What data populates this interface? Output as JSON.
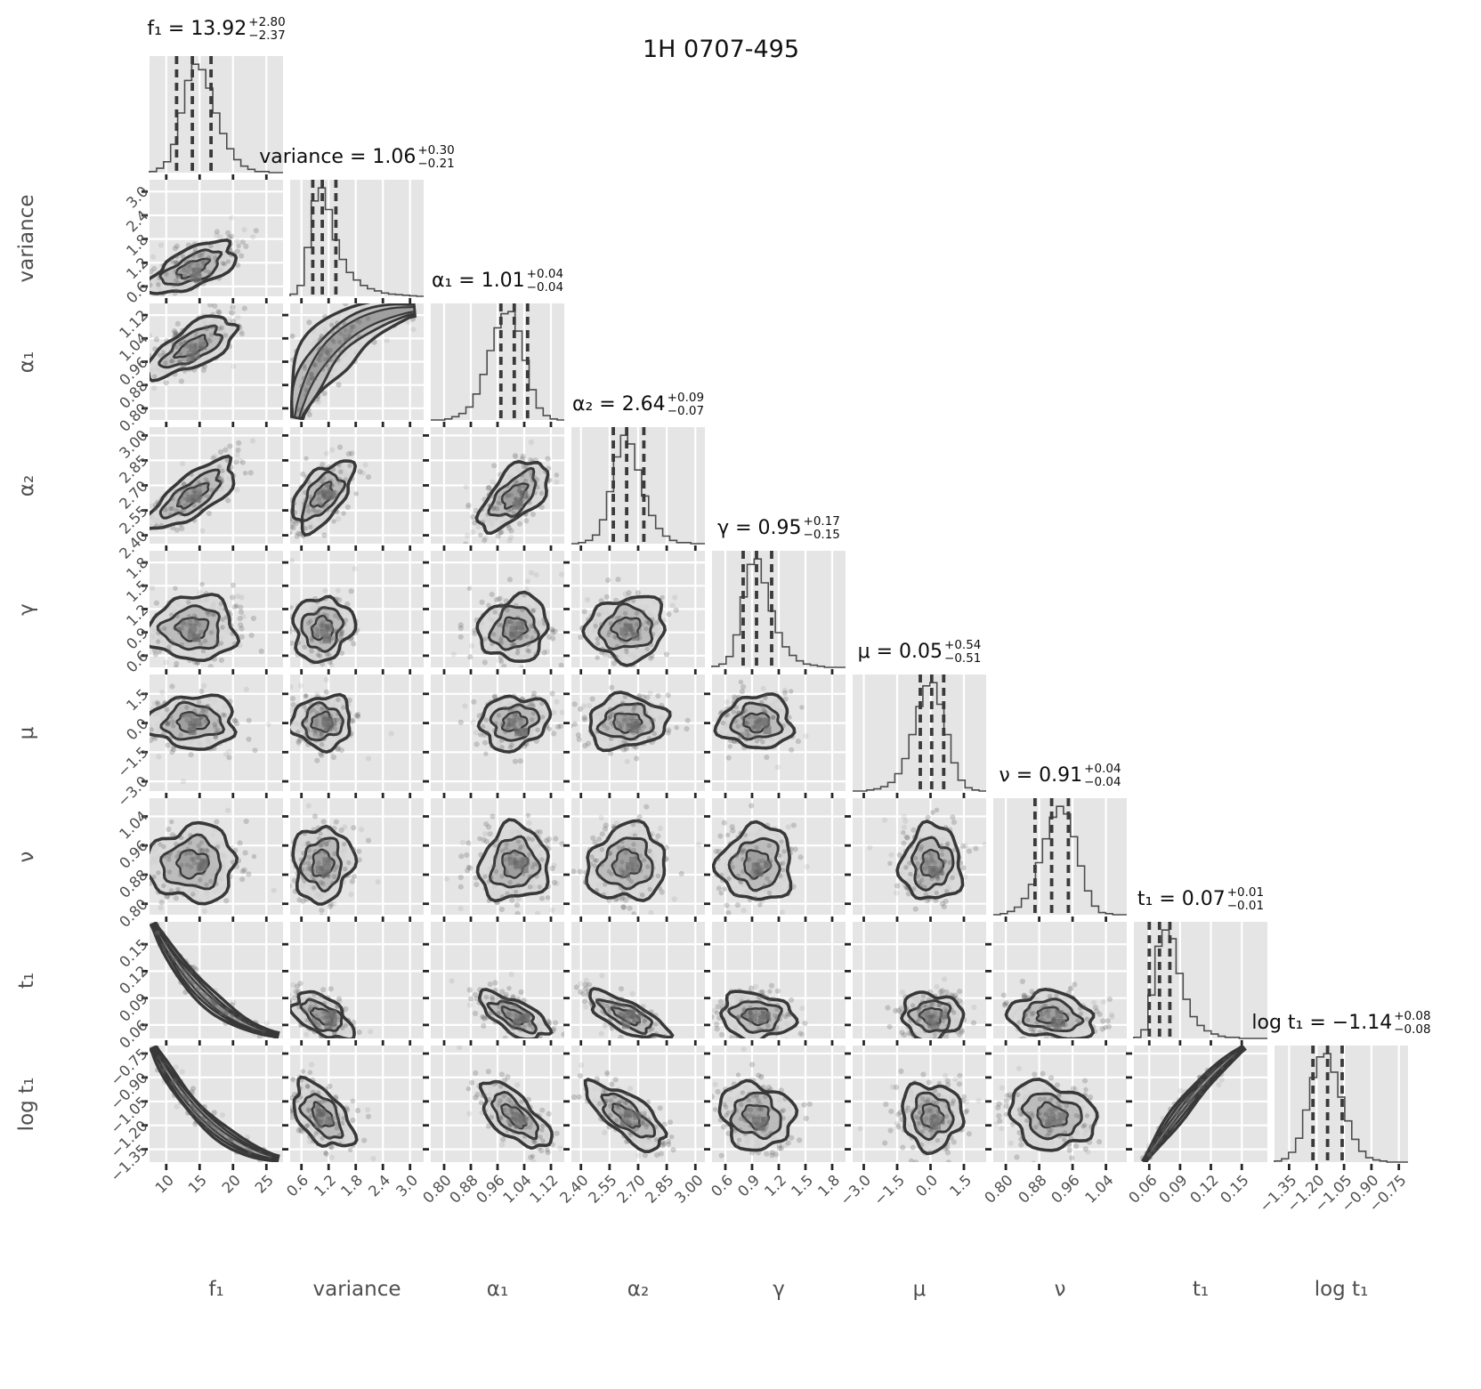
{
  "title": "1H 0707-495",
  "colors": {
    "panel_bg": "#e5e5e5",
    "grid": "#ffffff",
    "hist_line": "#4d4d4d",
    "quantile_line": "#3a3a3a",
    "scatter_point": "#5f5f5f",
    "contour_line": "#383838",
    "contour_fills": [
      "#d8d8d8",
      "#b7b7b7",
      "#979797"
    ],
    "core_patch": "#757575",
    "title_text": "#0d0d0d",
    "label_text": "#4f4f4f",
    "tick_mark": "#262626"
  },
  "chart_data": {
    "type": "corner_plot",
    "title": "1H 0707-495",
    "parameters": [
      {
        "id": "f1",
        "label": "f₁",
        "value": 13.92,
        "plus": 2.8,
        "minus": 2.37,
        "estimate": {
          "prefix": "f₁ = ",
          "value": "13.92",
          "plus": "+2.80",
          "minus": "−2.37"
        },
        "range": [
          7.5,
          27.5
        ],
        "ticks": [
          10,
          15,
          20,
          25
        ],
        "tick_labels": [
          "10",
          "15",
          "20",
          "25"
        ],
        "hist": [
          0.01,
          0.04,
          0.1,
          0.26,
          0.55,
          0.85,
          1.0,
          0.95,
          0.78,
          0.55,
          0.36,
          0.22,
          0.12,
          0.06,
          0.03,
          0.01,
          0.01,
          0,
          0
        ]
      },
      {
        "id": "variance",
        "label": "variance",
        "value": 1.06,
        "plus": 0.3,
        "minus": 0.21,
        "estimate": {
          "prefix": "variance = ",
          "value": "1.06",
          "plus": "+0.30",
          "minus": "−0.21"
        },
        "range": [
          0.35,
          3.3
        ],
        "ticks": [
          0.6,
          1.2,
          1.8,
          2.4,
          3.0
        ],
        "tick_labels": [
          "0.6",
          "1.2",
          "1.8",
          "2.4",
          "3.0"
        ],
        "hist": [
          0.02,
          0.1,
          0.45,
          0.88,
          1.0,
          0.8,
          0.52,
          0.34,
          0.22,
          0.15,
          0.1,
          0.07,
          0.05,
          0.03,
          0.02,
          0.015,
          0.01,
          0.005,
          0
        ]
      },
      {
        "id": "alpha1",
        "label": "α₁",
        "value": 1.01,
        "plus": 0.04,
        "minus": 0.04,
        "estimate": {
          "prefix": "α₁ = ",
          "value": "1.01",
          "plus": "+0.04",
          "minus": "−0.04"
        },
        "range": [
          0.76,
          1.16
        ],
        "ticks": [
          0.8,
          0.88,
          0.96,
          1.04,
          1.12
        ],
        "tick_labels": [
          "0.80",
          "0.88",
          "0.96",
          "1.04",
          "1.12"
        ],
        "hist": [
          0,
          0,
          0.01,
          0.03,
          0.06,
          0.12,
          0.24,
          0.42,
          0.64,
          0.85,
          0.98,
          1.0,
          0.82,
          0.55,
          0.28,
          0.11,
          0.04,
          0.01,
          0
        ]
      },
      {
        "id": "alpha2",
        "label": "α₂",
        "value": 2.64,
        "plus": 0.09,
        "minus": 0.07,
        "estimate": {
          "prefix": "α₂ = ",
          "value": "2.64",
          "plus": "+0.09",
          "minus": "−0.07"
        },
        "range": [
          2.35,
          3.05
        ],
        "ticks": [
          2.4,
          2.55,
          2.7,
          2.85,
          3.0
        ],
        "tick_labels": [
          "2.40",
          "2.55",
          "2.70",
          "2.85",
          "3.00"
        ],
        "hist": [
          0,
          0.01,
          0.03,
          0.08,
          0.22,
          0.48,
          0.8,
          1.0,
          0.92,
          0.68,
          0.44,
          0.26,
          0.14,
          0.07,
          0.03,
          0.01,
          0.01,
          0,
          0
        ]
      },
      {
        "id": "gamma",
        "label": "γ",
        "value": 0.95,
        "plus": 0.17,
        "minus": 0.15,
        "estimate": {
          "prefix": "γ = ",
          "value": "0.95",
          "plus": "+0.17",
          "minus": "−0.15"
        },
        "range": [
          0.45,
          1.95
        ],
        "ticks": [
          0.6,
          0.9,
          1.2,
          1.5,
          1.8
        ],
        "tick_labels": [
          "0.6",
          "0.9",
          "1.2",
          "1.5",
          "1.8"
        ],
        "hist": [
          0.01,
          0.03,
          0.1,
          0.3,
          0.65,
          0.95,
          1.0,
          0.78,
          0.52,
          0.32,
          0.19,
          0.11,
          0.06,
          0.03,
          0.02,
          0.01,
          0,
          0,
          0
        ]
      },
      {
        "id": "mu",
        "label": "μ",
        "value": 0.05,
        "plus": 0.54,
        "minus": 0.51,
        "estimate": {
          "prefix": "μ = ",
          "value": "0.05",
          "plus": "+0.54",
          "minus": "−0.51"
        },
        "range": [
          -3.5,
          2.5
        ],
        "ticks": [
          -3.0,
          -1.5,
          0.0,
          1.5
        ],
        "tick_labels": [
          "−3.0",
          "−1.5",
          "0.0",
          "1.5"
        ],
        "hist": [
          0,
          0,
          0.01,
          0.02,
          0.04,
          0.08,
          0.16,
          0.3,
          0.52,
          0.78,
          0.97,
          1.0,
          0.8,
          0.52,
          0.26,
          0.1,
          0.03,
          0.01,
          0
        ]
      },
      {
        "id": "nu",
        "label": "ν",
        "value": 0.91,
        "plus": 0.04,
        "minus": 0.04,
        "estimate": {
          "prefix": "ν = ",
          "value": "0.91",
          "plus": "+0.04",
          "minus": "−0.04"
        },
        "range": [
          0.77,
          1.09
        ],
        "ticks": [
          0.8,
          0.88,
          0.96,
          1.04
        ],
        "tick_labels": [
          "0.80",
          "0.88",
          "0.96",
          "1.04"
        ],
        "hist": [
          0,
          0.01,
          0.03,
          0.07,
          0.15,
          0.28,
          0.48,
          0.7,
          0.9,
          1.0,
          0.93,
          0.72,
          0.45,
          0.22,
          0.08,
          0.02,
          0.01,
          0,
          0
        ]
      },
      {
        "id": "t1",
        "label": "t₁",
        "value": 0.07,
        "plus": 0.01,
        "minus": 0.01,
        "estimate": {
          "prefix": "t₁ = ",
          "value": "0.07",
          "plus": "+0.01",
          "minus": "−0.01"
        },
        "range": [
          0.045,
          0.175
        ],
        "ticks": [
          0.06,
          0.09,
          0.12,
          0.15
        ],
        "tick_labels": [
          "0.06",
          "0.09",
          "0.12",
          "0.15"
        ],
        "hist": [
          0.01,
          0.08,
          0.4,
          0.85,
          1.0,
          0.92,
          0.6,
          0.36,
          0.2,
          0.12,
          0.07,
          0.04,
          0.02,
          0.01,
          0.01,
          0,
          0,
          0,
          0
        ]
      },
      {
        "id": "logt1",
        "label": "log t₁",
        "value": -1.14,
        "plus": 0.08,
        "minus": 0.08,
        "estimate": {
          "prefix": "log t₁ = ",
          "value": "−1.14",
          "plus": "+0.08",
          "minus": "−0.08"
        },
        "range": [
          -1.43,
          -0.7
        ],
        "ticks": [
          -1.35,
          -1.2,
          -1.05,
          -0.9,
          -0.75
        ],
        "tick_labels": [
          "−1.35",
          "−1.20",
          "−1.05",
          "−0.90",
          "−0.75"
        ],
        "hist": [
          0.01,
          0.03,
          0.09,
          0.22,
          0.48,
          0.78,
          0.97,
          1.0,
          0.83,
          0.6,
          0.38,
          0.21,
          0.1,
          0.04,
          0.02,
          0.01,
          0,
          0,
          0
        ]
      }
    ],
    "correlations": [
      {
        "y": "variance",
        "x": "f1",
        "rho": 0.62,
        "shape": "normal"
      },
      {
        "y": "alpha1",
        "x": "f1",
        "rho": 0.68,
        "shape": "normal"
      },
      {
        "y": "alpha1",
        "x": "variance",
        "rho": 0.92,
        "shape": "banana_pos"
      },
      {
        "y": "alpha2",
        "x": "f1",
        "rho": 0.74,
        "shape": "normal"
      },
      {
        "y": "alpha2",
        "x": "variance",
        "rho": 0.55,
        "shape": "normal"
      },
      {
        "y": "alpha2",
        "x": "alpha1",
        "rho": 0.6,
        "shape": "normal"
      },
      {
        "y": "gamma",
        "x": "f1",
        "rho": 0.04,
        "shape": "normal"
      },
      {
        "y": "gamma",
        "x": "variance",
        "rho": 0.1,
        "shape": "normal"
      },
      {
        "y": "gamma",
        "x": "alpha1",
        "rho": 0.12,
        "shape": "normal"
      },
      {
        "y": "gamma",
        "x": "alpha2",
        "rho": 0.08,
        "shape": "normal"
      },
      {
        "y": "mu",
        "x": "f1",
        "rho": 0.02,
        "shape": "normal"
      },
      {
        "y": "mu",
        "x": "variance",
        "rho": 0.04,
        "shape": "normal"
      },
      {
        "y": "mu",
        "x": "alpha1",
        "rho": 0.15,
        "shape": "normal"
      },
      {
        "y": "mu",
        "x": "alpha2",
        "rho": 0.08,
        "shape": "normal"
      },
      {
        "y": "mu",
        "x": "gamma",
        "rho": 0.03,
        "shape": "normal"
      },
      {
        "y": "nu",
        "x": "f1",
        "rho": 0.03,
        "shape": "normal"
      },
      {
        "y": "nu",
        "x": "variance",
        "rho": 0.05,
        "shape": "normal"
      },
      {
        "y": "nu",
        "x": "alpha1",
        "rho": 0.08,
        "shape": "normal"
      },
      {
        "y": "nu",
        "x": "alpha2",
        "rho": 0.1,
        "shape": "normal"
      },
      {
        "y": "nu",
        "x": "gamma",
        "rho": 0.04,
        "shape": "normal"
      },
      {
        "y": "nu",
        "x": "mu",
        "rho": 0.02,
        "shape": "normal"
      },
      {
        "y": "t1",
        "x": "f1",
        "rho": -0.98,
        "shape": "banana_neg"
      },
      {
        "y": "t1",
        "x": "variance",
        "rho": -0.52,
        "shape": "normal"
      },
      {
        "y": "t1",
        "x": "alpha1",
        "rho": -0.66,
        "shape": "normal"
      },
      {
        "y": "t1",
        "x": "alpha2",
        "rho": -0.72,
        "shape": "normal"
      },
      {
        "y": "t1",
        "x": "gamma",
        "rho": -0.12,
        "shape": "normal"
      },
      {
        "y": "t1",
        "x": "mu",
        "rho": -0.04,
        "shape": "normal"
      },
      {
        "y": "t1",
        "x": "nu",
        "rho": -0.18,
        "shape": "normal"
      },
      {
        "y": "logt1",
        "x": "f1",
        "rho": -0.98,
        "shape": "banana_neg"
      },
      {
        "y": "logt1",
        "x": "variance",
        "rho": -0.52,
        "shape": "normal"
      },
      {
        "y": "logt1",
        "x": "alpha1",
        "rho": -0.66,
        "shape": "normal"
      },
      {
        "y": "logt1",
        "x": "alpha2",
        "rho": -0.72,
        "shape": "normal"
      },
      {
        "y": "logt1",
        "x": "gamma",
        "rho": -0.12,
        "shape": "normal"
      },
      {
        "y": "logt1",
        "x": "mu",
        "rho": -0.04,
        "shape": "normal"
      },
      {
        "y": "logt1",
        "x": "nu",
        "rho": -0.18,
        "shape": "normal"
      },
      {
        "y": "logt1",
        "x": "t1",
        "rho": 0.995,
        "shape": "tight_pos"
      }
    ]
  }
}
